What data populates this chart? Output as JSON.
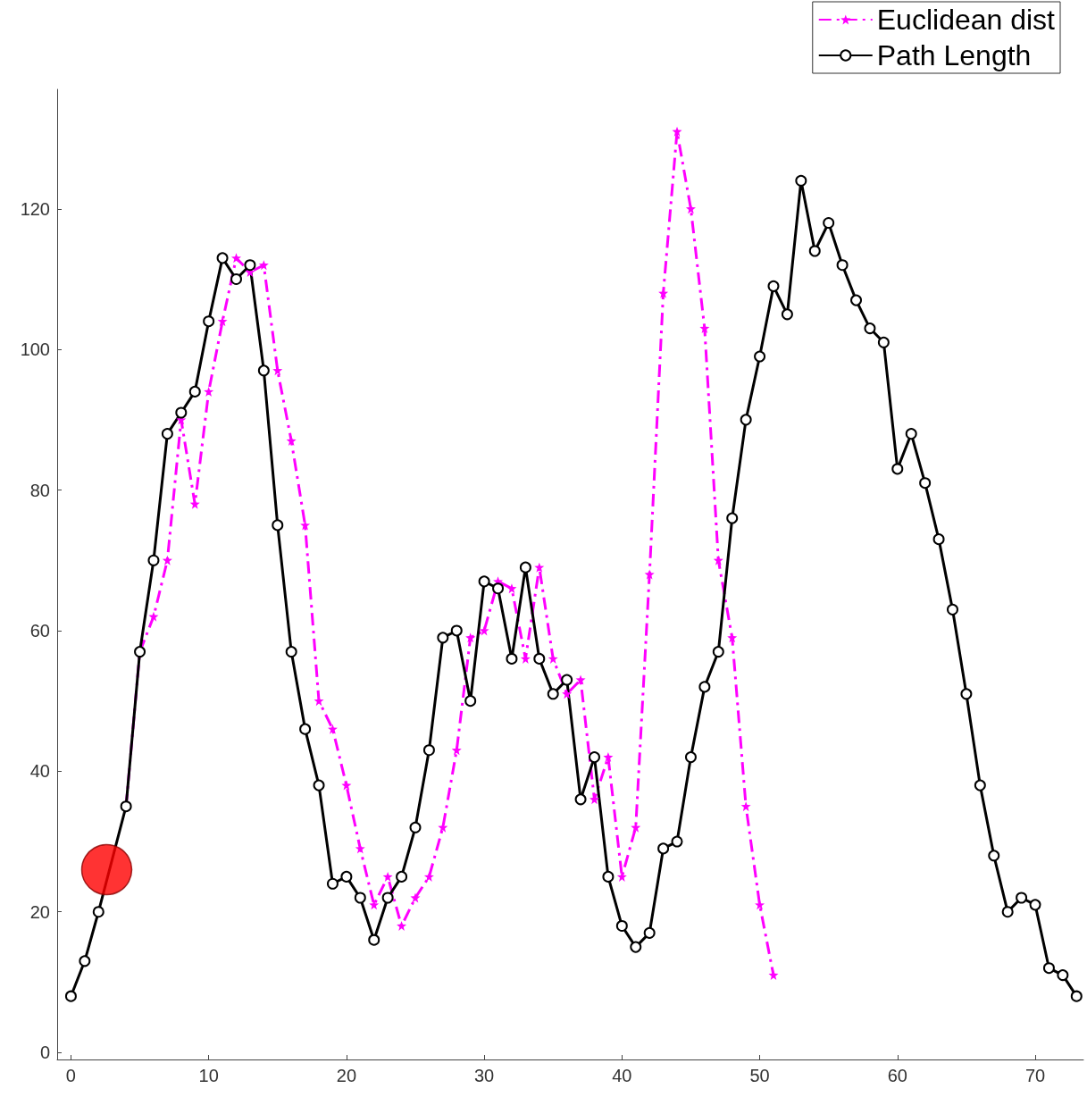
{
  "chart_data": {
    "type": "line",
    "x": [
      0,
      1,
      2,
      3,
      4,
      5,
      6,
      7,
      8,
      9,
      10,
      11,
      12,
      13,
      14,
      15,
      16,
      17,
      18,
      19,
      20,
      21,
      22,
      23,
      24,
      25,
      26,
      27,
      28,
      29,
      30,
      31,
      32,
      33,
      34,
      35,
      36,
      37,
      38,
      39,
      40,
      41,
      42,
      43,
      44,
      45,
      46,
      47,
      48,
      49,
      50,
      51,
      52,
      53,
      54,
      55,
      56,
      57,
      58,
      59,
      60,
      61,
      62,
      63,
      64,
      65,
      66,
      67,
      68,
      69,
      70,
      71,
      72,
      73
    ],
    "series": [
      {
        "name": "Euclidean dist",
        "color": "#ff00ff",
        "marker": "star",
        "line_style": "dashed",
        "x": [
          4,
          5,
          6,
          7,
          8,
          9,
          10,
          11,
          12,
          13,
          14,
          15,
          16,
          17,
          18,
          19,
          20,
          21,
          22,
          23,
          24,
          25,
          26,
          27,
          28,
          29,
          30,
          31,
          32,
          33,
          34,
          35,
          36,
          37,
          38,
          39,
          40,
          41,
          42,
          43,
          44,
          45,
          46,
          47,
          48,
          49,
          50,
          51
        ],
        "values": [
          35,
          57,
          62,
          70,
          90,
          78,
          94,
          104,
          113,
          111,
          112,
          97,
          87,
          75,
          50,
          46,
          38,
          29,
          21,
          25,
          18,
          22,
          25,
          32,
          43,
          59,
          60,
          67,
          66,
          56,
          69,
          56,
          51,
          53,
          36,
          42,
          25,
          32,
          68,
          108,
          131,
          120,
          103,
          70,
          59,
          35,
          21,
          11
        ]
      },
      {
        "name": "Path Length",
        "color": "#000000",
        "marker": "circle",
        "line_style": "solid",
        "values": [
          8,
          13,
          20,
          null,
          35,
          57,
          70,
          88,
          91,
          94,
          104,
          113,
          110,
          112,
          97,
          75,
          57,
          46,
          38,
          24,
          25,
          22,
          16,
          22,
          25,
          32,
          43,
          59,
          60,
          50,
          67,
          66,
          56,
          69,
          56,
          51,
          53,
          36,
          42,
          25,
          18,
          15,
          17,
          29,
          30,
          42,
          52,
          57,
          76,
          90,
          99,
          109,
          105,
          124,
          114,
          118,
          112,
          107,
          103,
          101,
          83,
          88,
          81,
          73,
          63,
          51,
          38,
          28,
          20,
          22,
          21,
          12,
          11,
          8
        ]
      },
      {
        "type": "scatter",
        "color": "#ff0000",
        "marker": "circle",
        "x": [
          2.6
        ],
        "values": [
          26
        ]
      }
    ],
    "xlim": [
      -1,
      73.5
    ],
    "ylim": [
      -1,
      137
    ],
    "xticks": [
      0,
      10,
      20,
      30,
      40,
      50,
      60,
      70
    ],
    "yticks": [
      0,
      20,
      40,
      60,
      80,
      100,
      120
    ],
    "grid": false,
    "legend": "top right"
  }
}
